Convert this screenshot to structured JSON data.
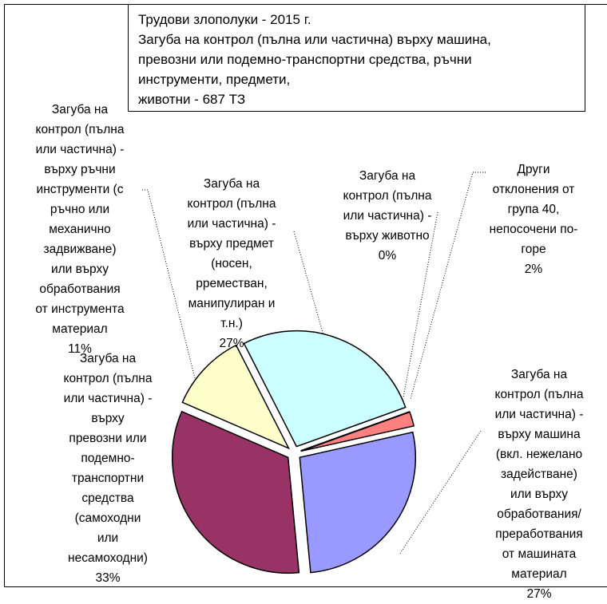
{
  "chart_data": {
    "type": "pie",
    "title": "Трудови злополуки - 2015 г.",
    "subtitle": "Загуба на контрол (пълна или частична) върху машина,\nпревозни или подемно-транспортни средства, ръчни\nинструменти, предмети,\nживотни - 687 ТЗ",
    "categories": [
      "Загуба на\nконтрол (пълна\nили частична) -\nвърху предмет\n(носен,\npреместван,\nманипулиран и\nт.н.)",
      "Загуба на\nконтрол (пълна\nили частична) -\nвърху животно",
      "Други\nотклонения от\nгрупа 40,\nнепосочени по-\nгоре",
      "Загуба на\nконтрол (пълна\nили частична) -\nвърху машина\n(вкл. нежелано\nзадействане)\nили върху\nобработвания/\nпреработвания\nот машината\nматериал",
      "Загуба на\nконтрол (пълна\nили частична) -\nвърху\nпревозни или\nподемно-\nтранспортни\nсредства\n(самоходни\nили\nнесамоходни)",
      "Загуба на\nконтрол (пълна\nили частична) -\nвърху ръчни\nинструменти (с\nръчно или\nмеханично\nзадвижване)\nили върху\nобработвания\nот инструмента\nматериал"
    ],
    "values": [
      27,
      0,
      2,
      27,
      33,
      11
    ],
    "value_labels": [
      "27%",
      "0%",
      "2%",
      "27%",
      "33%",
      "11%"
    ],
    "colors": [
      "#ccffff",
      "#000000",
      "#ff8080",
      "#9999ff",
      "#993366",
      "#ffffcc"
    ]
  }
}
